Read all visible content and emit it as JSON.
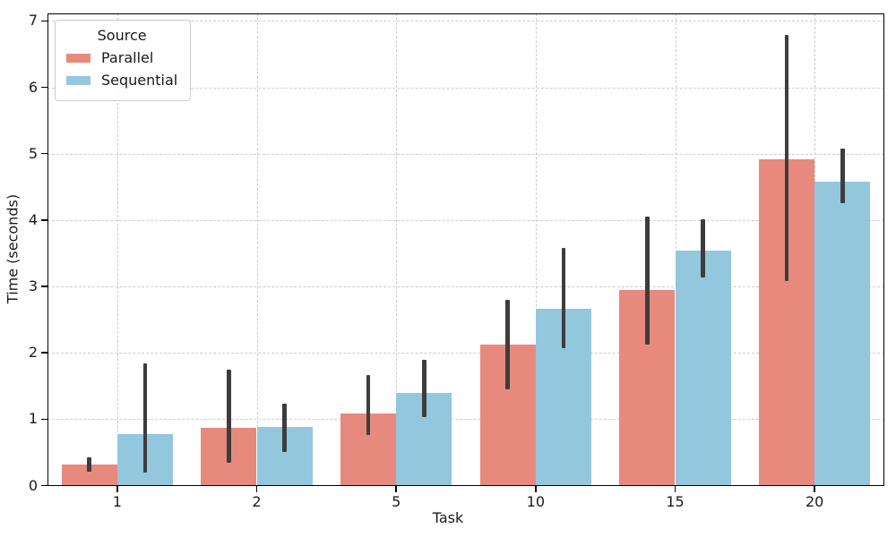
{
  "colors": {
    "parallel": "#E8897E",
    "sequential": "#93C7DE",
    "error_bar": "#3D3D3D",
    "grid": "#CDCDCD",
    "frame": "#000000",
    "background": "#FFFFFF",
    "legend_border": "#CCCCCC"
  },
  "chart_data": {
    "type": "bar",
    "title": "",
    "xlabel": "Task",
    "ylabel": "Time (seconds)",
    "categories": [
      "1",
      "2",
      "5",
      "10",
      "15",
      "20"
    ],
    "series": [
      {
        "name": "Parallel",
        "color": "#E8897E",
        "values": [
          0.32,
          0.87,
          1.08,
          2.12,
          2.95,
          4.92
        ],
        "err_low": [
          0.21,
          0.34,
          0.76,
          1.45,
          2.13,
          3.08
        ],
        "err_high": [
          0.43,
          1.75,
          1.67,
          2.8,
          4.05,
          6.79
        ]
      },
      {
        "name": "Sequential",
        "color": "#93C7DE",
        "values": [
          0.77,
          0.88,
          1.39,
          2.66,
          3.54,
          4.58
        ],
        "err_low": [
          0.2,
          0.5,
          1.03,
          2.07,
          3.14,
          4.25
        ],
        "err_high": [
          1.84,
          1.23,
          1.9,
          3.58,
          4.01,
          5.08
        ]
      }
    ],
    "ylim": [
      0,
      7.12
    ],
    "yticks": [
      0,
      1,
      2,
      3,
      4,
      5,
      6,
      7
    ],
    "grid": "both-dashed",
    "legend": {
      "title": "Source",
      "position": "upper-left"
    }
  }
}
